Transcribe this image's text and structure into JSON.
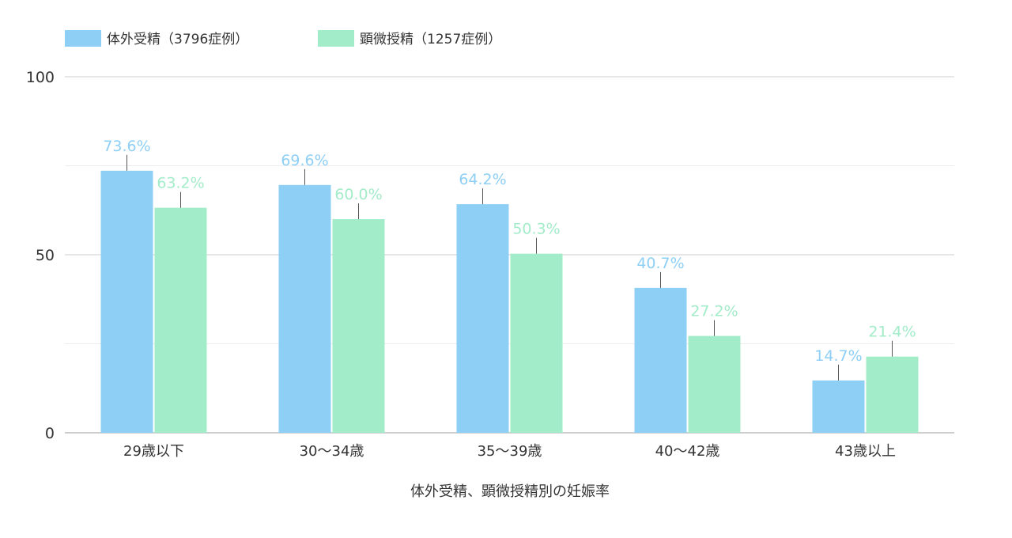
{
  "chart_data": {
    "type": "bar",
    "categories": [
      "29歳以下",
      "30〜34歳",
      "35〜39歳",
      "40〜42歳",
      "43歳以上"
    ],
    "series": [
      {
        "name": "体外受精（3796症例）",
        "color": "#8ecff5",
        "label_color": "#8ecff5",
        "values": [
          73.6,
          69.6,
          64.2,
          40.7,
          14.7
        ],
        "labels": [
          "73.6%",
          "69.6%",
          "64.2%",
          "40.7%",
          "14.7%"
        ]
      },
      {
        "name": "顕微授精（1257症例）",
        "color": "#a3ecc9",
        "label_color": "#a3ecc9",
        "values": [
          63.2,
          60.0,
          50.3,
          27.2,
          21.4
        ],
        "labels": [
          "63.2%",
          "60.0%",
          "50.3%",
          "27.2%",
          "21.4%"
        ]
      }
    ],
    "xlabel": "体外受精、顕微授精別の妊娠率",
    "ylabel": "",
    "ylim": [
      0,
      100
    ],
    "yticks": [
      0,
      50,
      100
    ],
    "grid": true,
    "legend": "top-left",
    "error_bars": true
  }
}
